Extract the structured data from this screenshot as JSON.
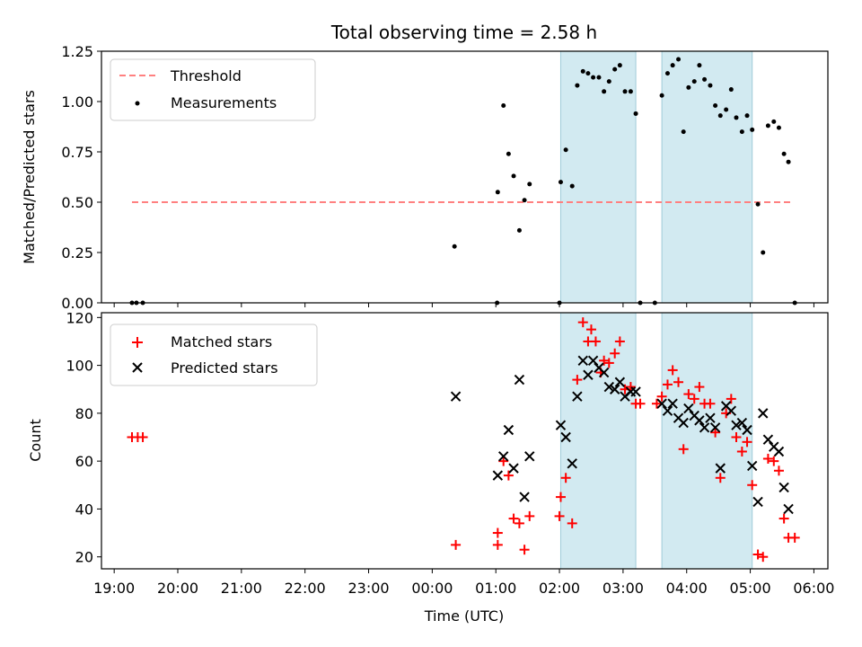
{
  "chart_data": [
    {
      "type": "scatter",
      "title": "Total observing time = 2.58 h",
      "xlabel": "",
      "ylabel": "Matched/Predicted stars",
      "ylim": [
        0,
        1.25
      ],
      "yticks": [
        "0.00",
        "0.25",
        "0.50",
        "0.75",
        "1.00",
        "1.25"
      ],
      "ytick_values": [
        0,
        0.25,
        0.5,
        0.75,
        1.0,
        1.25
      ],
      "legend_position": "top-left",
      "shaded_intervals": [
        [
          2.02,
          3.2
        ],
        [
          3.61,
          5.03
        ]
      ],
      "threshold": {
        "name": "Threshold",
        "value": 0.5,
        "x_range": [
          19.28,
          29.68
        ],
        "color": "#ff8080"
      },
      "series": [
        {
          "name": "Measurements",
          "color": "#000000",
          "points": [
            [
              19.28,
              0
            ],
            [
              19.35,
              0
            ],
            [
              19.45,
              0
            ],
            [
              24.35,
              0.28
            ],
            [
              25.02,
              0
            ],
            [
              25.03,
              0.55
            ],
            [
              25.12,
              0.98
            ],
            [
              25.2,
              0.74
            ],
            [
              25.28,
              0.63
            ],
            [
              25.37,
              0.36
            ],
            [
              25.45,
              0.51
            ],
            [
              25.53,
              0.59
            ],
            [
              26.0,
              0
            ],
            [
              26.02,
              0.6
            ],
            [
              26.1,
              0.76
            ],
            [
              26.2,
              0.58
            ],
            [
              26.28,
              1.08
            ],
            [
              26.37,
              1.15
            ],
            [
              26.45,
              1.14
            ],
            [
              26.53,
              1.12
            ],
            [
              26.62,
              1.12
            ],
            [
              26.7,
              1.05
            ],
            [
              26.78,
              1.1
            ],
            [
              26.87,
              1.16
            ],
            [
              26.95,
              1.18
            ],
            [
              27.03,
              1.05
            ],
            [
              27.12,
              1.05
            ],
            [
              27.2,
              0.94
            ],
            [
              27.27,
              0
            ],
            [
              27.5,
              0
            ],
            [
              27.61,
              1.03
            ],
            [
              27.7,
              1.14
            ],
            [
              27.78,
              1.18
            ],
            [
              27.87,
              1.21
            ],
            [
              27.95,
              0.85
            ],
            [
              28.03,
              1.07
            ],
            [
              28.12,
              1.1
            ],
            [
              28.2,
              1.18
            ],
            [
              28.28,
              1.11
            ],
            [
              28.37,
              1.08
            ],
            [
              28.45,
              0.98
            ],
            [
              28.53,
              0.93
            ],
            [
              28.62,
              0.96
            ],
            [
              28.7,
              1.06
            ],
            [
              28.78,
              0.92
            ],
            [
              28.87,
              0.85
            ],
            [
              28.95,
              0.93
            ],
            [
              29.03,
              0.86
            ],
            [
              29.12,
              0.49
            ],
            [
              29.2,
              0.25
            ],
            [
              29.28,
              0.88
            ],
            [
              29.37,
              0.9
            ],
            [
              29.45,
              0.87
            ],
            [
              29.53,
              0.74
            ],
            [
              29.6,
              0.7
            ],
            [
              29.7,
              0
            ]
          ]
        }
      ]
    },
    {
      "type": "scatter",
      "title": "",
      "xlabel": "Time (UTC)",
      "ylabel": "Count",
      "ylim": [
        15,
        122
      ],
      "yticks": [
        "20",
        "40",
        "60",
        "80",
        "100",
        "120"
      ],
      "ytick_values": [
        20,
        40,
        60,
        80,
        100,
        120
      ],
      "xticks": [
        "19:00",
        "20:00",
        "21:00",
        "22:00",
        "23:00",
        "00:00",
        "01:00",
        "02:00",
        "03:00",
        "04:00",
        "05:00",
        "06:00"
      ],
      "xtick_values": [
        19,
        20,
        21,
        22,
        23,
        24,
        25,
        26,
        27,
        28,
        29,
        30
      ],
      "xlim": [
        18.8,
        30.22
      ],
      "legend_position": "top-left",
      "shaded_intervals": [
        [
          2.02,
          3.2
        ],
        [
          3.61,
          5.03
        ]
      ],
      "series": [
        {
          "name": "Matched stars",
          "color": "#ff0000",
          "marker": "+",
          "points": [
            [
              19.28,
              70
            ],
            [
              19.37,
              70
            ],
            [
              19.45,
              70
            ],
            [
              24.37,
              25
            ],
            [
              25.03,
              25
            ],
            [
              25.03,
              30
            ],
            [
              25.12,
              60
            ],
            [
              25.2,
              54
            ],
            [
              25.28,
              36
            ],
            [
              25.37,
              34
            ],
            [
              25.45,
              23
            ],
            [
              25.53,
              37
            ],
            [
              26.0,
              37
            ],
            [
              26.02,
              45
            ],
            [
              26.1,
              53
            ],
            [
              26.2,
              34
            ],
            [
              26.28,
              94
            ],
            [
              26.37,
              118
            ],
            [
              26.45,
              110
            ],
            [
              26.5,
              115
            ],
            [
              26.57,
              110
            ],
            [
              26.65,
              97
            ],
            [
              26.7,
              102
            ],
            [
              26.78,
              101
            ],
            [
              26.87,
              105
            ],
            [
              26.95,
              110
            ],
            [
              27.03,
              90
            ],
            [
              27.12,
              91
            ],
            [
              27.2,
              84
            ],
            [
              27.27,
              84
            ],
            [
              27.53,
              84
            ],
            [
              27.61,
              87
            ],
            [
              27.7,
              92
            ],
            [
              27.78,
              98
            ],
            [
              27.87,
              93
            ],
            [
              27.95,
              65
            ],
            [
              28.03,
              88
            ],
            [
              28.12,
              86
            ],
            [
              28.2,
              91
            ],
            [
              28.28,
              84
            ],
            [
              28.37,
              84
            ],
            [
              28.45,
              72
            ],
            [
              28.53,
              53
            ],
            [
              28.62,
              80
            ],
            [
              28.7,
              86
            ],
            [
              28.78,
              70
            ],
            [
              28.87,
              64
            ],
            [
              28.95,
              68
            ],
            [
              29.03,
              50
            ],
            [
              29.12,
              21
            ],
            [
              29.2,
              20
            ],
            [
              29.28,
              61
            ],
            [
              29.37,
              60
            ],
            [
              29.45,
              56
            ],
            [
              29.53,
              36
            ],
            [
              29.6,
              28
            ],
            [
              29.7,
              28
            ]
          ]
        },
        {
          "name": "Predicted stars",
          "color": "#000000",
          "marker": "x",
          "points": [
            [
              24.37,
              87
            ],
            [
              25.03,
              54
            ],
            [
              25.12,
              62
            ],
            [
              25.2,
              73
            ],
            [
              25.28,
              57
            ],
            [
              25.37,
              94
            ],
            [
              25.45,
              45
            ],
            [
              25.53,
              62
            ],
            [
              26.02,
              75
            ],
            [
              26.1,
              70
            ],
            [
              26.2,
              59
            ],
            [
              26.28,
              87
            ],
            [
              26.37,
              102
            ],
            [
              26.45,
              96
            ],
            [
              26.53,
              102
            ],
            [
              26.62,
              99
            ],
            [
              26.7,
              97
            ],
            [
              26.78,
              91
            ],
            [
              26.87,
              90
            ],
            [
              26.95,
              93
            ],
            [
              27.03,
              87
            ],
            [
              27.12,
              89
            ],
            [
              27.2,
              89
            ],
            [
              27.61,
              84
            ],
            [
              27.7,
              81
            ],
            [
              27.78,
              84
            ],
            [
              27.87,
              78
            ],
            [
              27.95,
              76
            ],
            [
              28.03,
              82
            ],
            [
              28.12,
              79
            ],
            [
              28.2,
              77
            ],
            [
              28.28,
              74
            ],
            [
              28.37,
              78
            ],
            [
              28.45,
              74
            ],
            [
              28.53,
              57
            ],
            [
              28.62,
              83
            ],
            [
              28.7,
              81
            ],
            [
              28.78,
              75
            ],
            [
              28.87,
              76
            ],
            [
              28.95,
              73
            ],
            [
              29.03,
              58
            ],
            [
              29.12,
              43
            ],
            [
              29.2,
              80
            ],
            [
              29.28,
              69
            ],
            [
              29.37,
              66
            ],
            [
              29.45,
              64
            ],
            [
              29.53,
              49
            ],
            [
              29.6,
              40
            ]
          ]
        }
      ]
    }
  ],
  "colors": {
    "shade": "#add8e6",
    "threshold": "#ff8080",
    "matched": "#ff0000",
    "predicted": "#000000",
    "measurements": "#000000"
  }
}
